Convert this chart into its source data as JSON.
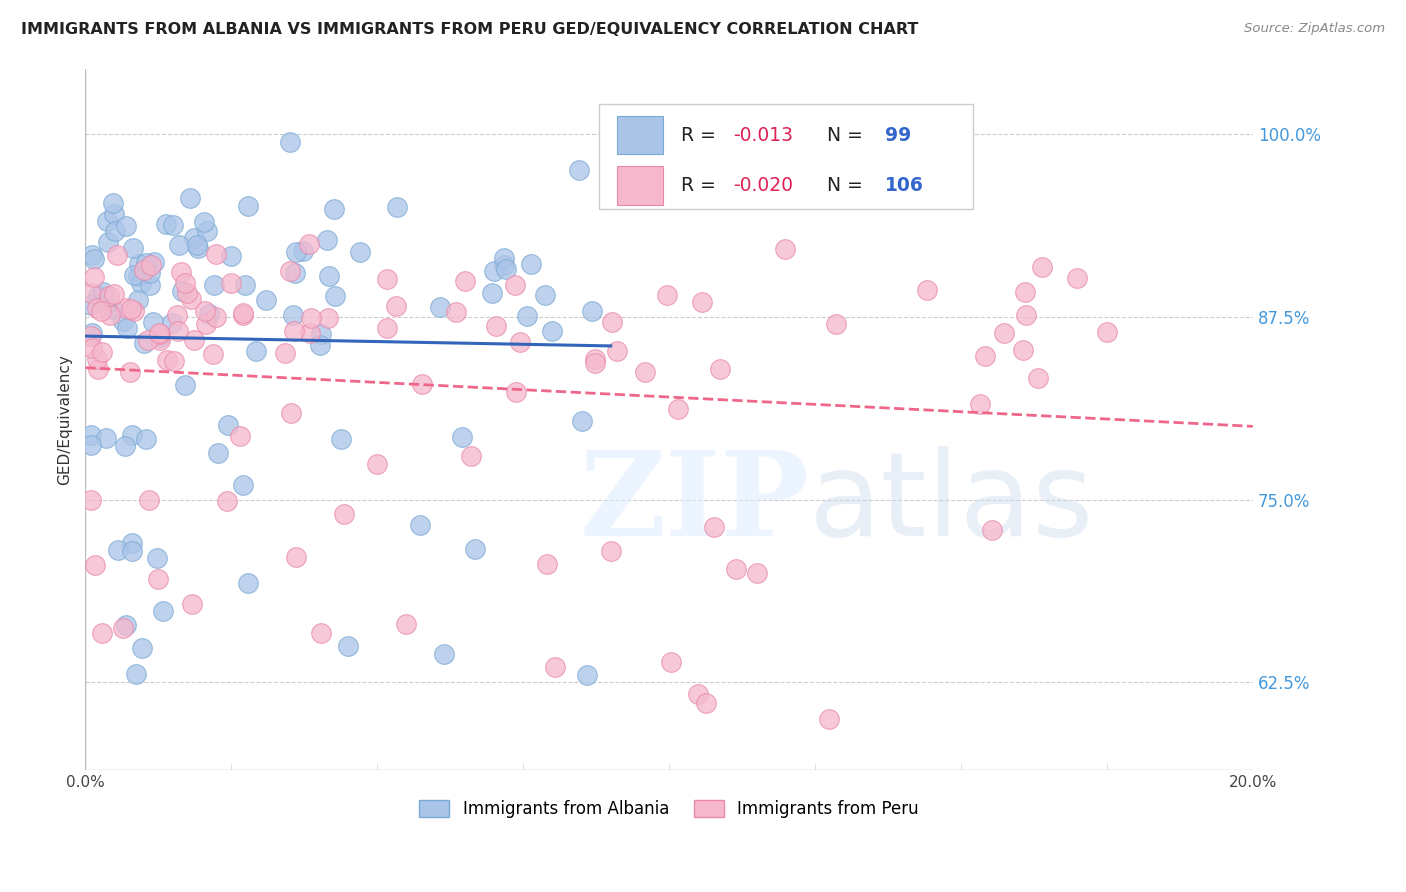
{
  "title": "IMMIGRANTS FROM ALBANIA VS IMMIGRANTS FROM PERU GED/EQUIVALENCY CORRELATION CHART",
  "source": "Source: ZipAtlas.com",
  "ylabel": "GED/Equivalency",
  "ytick_labels": [
    "62.5%",
    "75.0%",
    "87.5%",
    "100.0%"
  ],
  "ytick_vals": [
    0.625,
    0.75,
    0.875,
    1.0
  ],
  "xlim": [
    0.0,
    0.2
  ],
  "ylim": [
    0.565,
    1.045
  ],
  "albania_R": "-0.013",
  "albania_N": "99",
  "peru_R": "-0.020",
  "peru_N": "106",
  "albania_color": "#aac4e8",
  "albania_edge": "#7aaad4",
  "peru_color": "#f5b8cc",
  "peru_edge": "#e888aa",
  "trendline_albania_color": "#3366bb",
  "trendline_peru_color": "#ee6688",
  "background_color": "#ffffff",
  "grid_color": "#cccccc",
  "right_tick_color": "#4499dd",
  "legend_R_color": "#dd2255",
  "legend_N_color": "#3366cc"
}
